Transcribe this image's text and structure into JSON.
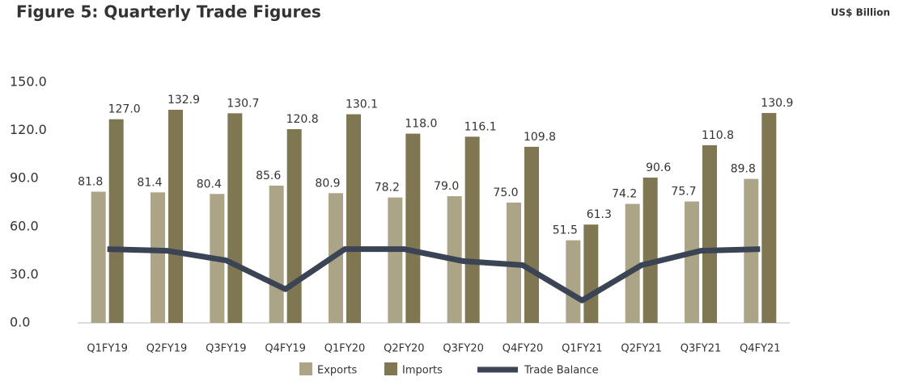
{
  "chart_data": {
    "type": "bar",
    "title": "Figure 5: Quarterly Trade Figures",
    "unit": "US$ Billion",
    "categories": [
      "Q1FY19",
      "Q2FY19",
      "Q3FY19",
      "Q4FY19",
      "Q1FY20",
      "Q2FY20",
      "Q3FY20",
      "Q4FY20",
      "Q1FY21",
      "Q2FY21",
      "Q3FY21",
      "Q4FY21"
    ],
    "series": [
      {
        "name": "Exports",
        "type": "bar",
        "color": "#aca486",
        "values": [
          81.8,
          81.4,
          80.4,
          85.6,
          80.9,
          78.2,
          79.0,
          75.0,
          51.5,
          74.2,
          75.7,
          89.8
        ],
        "value_labels": [
          "81.8",
          "81.4",
          "80.4",
          "85.6",
          "80.9",
          "78.2",
          "79.0",
          "75.0",
          "51.5",
          "74.2",
          "75.7",
          "89.8"
        ]
      },
      {
        "name": "Imports",
        "type": "bar",
        "color": "#7e7752",
        "values": [
          127.0,
          132.9,
          130.7,
          120.8,
          130.1,
          118.0,
          116.1,
          109.8,
          61.3,
          90.6,
          110.8,
          130.9
        ],
        "value_labels": [
          "127.0",
          "132.9",
          "130.7",
          "120.8",
          "130.1",
          "118.0",
          "116.1",
          "109.8",
          "61.3",
          "90.6",
          "110.8",
          "130.9"
        ]
      },
      {
        "name": "Trade Balance",
        "type": "line",
        "color": "#3b4454",
        "values": [
          46,
          45,
          39,
          21,
          46,
          46,
          38.5,
          36,
          14,
          36,
          45,
          46
        ]
      }
    ],
    "ylim": [
      0,
      150
    ],
    "yticks": [
      {
        "value": 0,
        "label": "0.0"
      },
      {
        "value": 30,
        "label": "30.0"
      },
      {
        "value": 60,
        "label": "60.0"
      },
      {
        "value": 90,
        "label": "90.0"
      },
      {
        "value": 120,
        "label": "120.0"
      },
      {
        "value": 150,
        "label": "150.0"
      }
    ],
    "legend": "bottom"
  }
}
